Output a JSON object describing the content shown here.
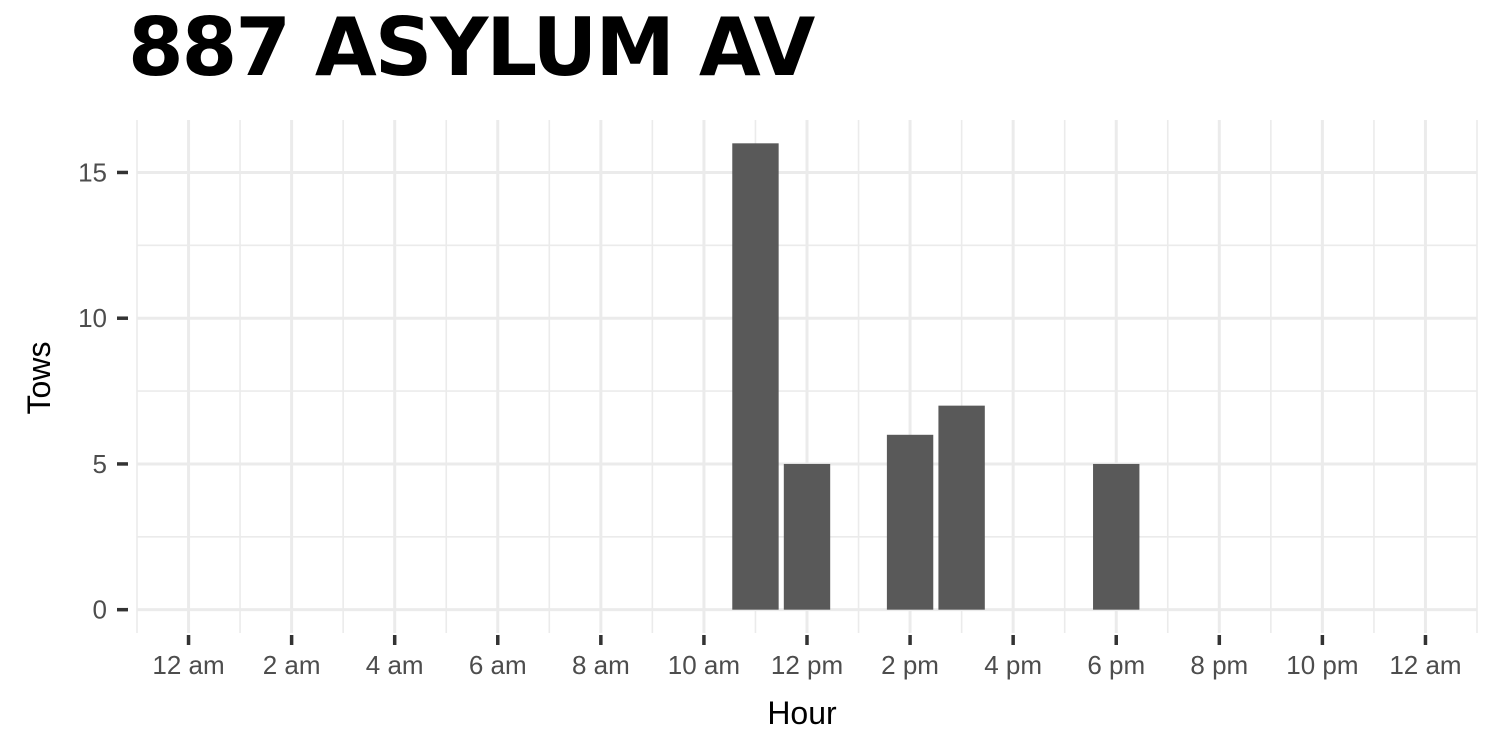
{
  "chart_data": {
    "type": "bar",
    "title": "887 ASYLUM AV",
    "xlabel": "Hour",
    "ylabel": "Tows",
    "x_ticks": [
      {
        "hour": 0,
        "label": "12 am"
      },
      {
        "hour": 2,
        "label": "2 am"
      },
      {
        "hour": 4,
        "label": "4 am"
      },
      {
        "hour": 6,
        "label": "6 am"
      },
      {
        "hour": 8,
        "label": "8 am"
      },
      {
        "hour": 10,
        "label": "10 am"
      },
      {
        "hour": 12,
        "label": "12 pm"
      },
      {
        "hour": 14,
        "label": "2 pm"
      },
      {
        "hour": 16,
        "label": "4 pm"
      },
      {
        "hour": 18,
        "label": "6 pm"
      },
      {
        "hour": 20,
        "label": "8 pm"
      },
      {
        "hour": 22,
        "label": "10 pm"
      },
      {
        "hour": 24,
        "label": "12 am"
      }
    ],
    "y_ticks": [
      0,
      5,
      10,
      15
    ],
    "xlim": [
      -1,
      25
    ],
    "ylim": [
      -0.8,
      16.8
    ],
    "bars": [
      {
        "hour": 11,
        "value": 16
      },
      {
        "hour": 12,
        "value": 5
      },
      {
        "hour": 14,
        "value": 6
      },
      {
        "hour": 15,
        "value": 7
      },
      {
        "hour": 18,
        "value": 5
      }
    ],
    "grid": true,
    "bar_color": "#595959",
    "grid_color": "#ebebeb"
  }
}
